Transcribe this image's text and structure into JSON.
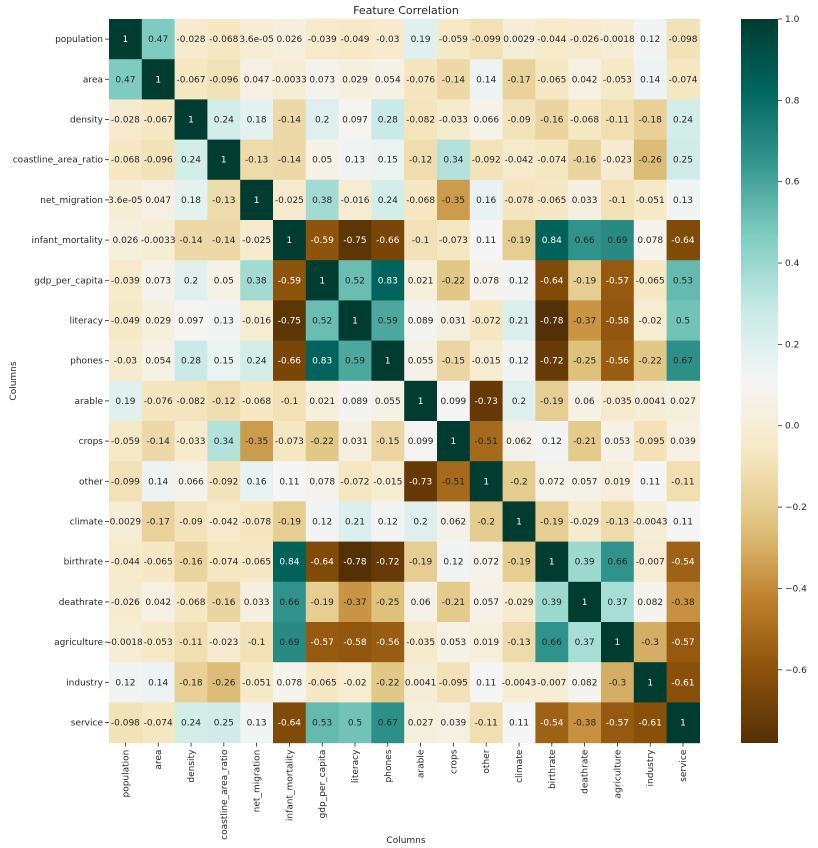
{
  "chart_data": {
    "type": "heatmap",
    "title": "Feature Correlation",
    "xlabel": "Columns",
    "ylabel": "Columns",
    "colormap": "BrBG",
    "vmin": -0.78,
    "vmax": 1.0,
    "colorbar_ticks": [
      1.0,
      0.8,
      0.6,
      0.4,
      0.2,
      0.0,
      -0.2,
      -0.4,
      -0.6
    ],
    "colorbar_tick_labels": [
      "1.0",
      "0.8",
      "0.6",
      "0.4",
      "0.2",
      "0.0",
      "−0.2",
      "−0.4",
      "−0.6"
    ],
    "columns": [
      "population",
      "area",
      "density",
      "coastline_area_ratio",
      "net_migration",
      "infant_mortality",
      "gdp_per_capita",
      "literacy",
      "phones",
      "arable",
      "crops",
      "other",
      "climate",
      "birthrate",
      "deathrate",
      "agriculture",
      "industry",
      "service"
    ],
    "rows": [
      "population",
      "area",
      "density",
      "coastline_area_ratio",
      "net_migration",
      "infant_mortality",
      "gdp_per_capita",
      "literacy",
      "phones",
      "arable",
      "crops",
      "other",
      "climate",
      "birthrate",
      "deathrate",
      "agriculture",
      "industry",
      "service"
    ],
    "values": [
      [
        1,
        0.47,
        -0.028,
        -0.068,
        3.6e-05,
        0.026,
        -0.039,
        -0.049,
        -0.03,
        0.19,
        -0.059,
        -0.099,
        0.0029,
        -0.044,
        -0.026,
        -0.0018,
        0.12,
        -0.098
      ],
      [
        0.47,
        1,
        -0.067,
        -0.096,
        0.047,
        -0.0033,
        0.073,
        0.029,
        0.054,
        -0.076,
        -0.14,
        0.14,
        -0.17,
        -0.065,
        0.042,
        -0.053,
        0.14,
        -0.074
      ],
      [
        -0.028,
        -0.067,
        1,
        0.24,
        0.18,
        -0.14,
        0.2,
        0.097,
        0.28,
        -0.082,
        -0.033,
        0.066,
        -0.09,
        -0.16,
        -0.068,
        -0.11,
        -0.18,
        0.24
      ],
      [
        -0.068,
        -0.096,
        0.24,
        1,
        -0.13,
        -0.14,
        0.05,
        0.13,
        0.15,
        -0.12,
        0.34,
        -0.092,
        -0.042,
        -0.074,
        -0.16,
        -0.023,
        -0.26,
        0.25
      ],
      [
        3.6e-05,
        0.047,
        0.18,
        -0.13,
        1,
        -0.025,
        0.38,
        -0.016,
        0.24,
        -0.068,
        -0.35,
        0.16,
        -0.078,
        -0.065,
        0.033,
        -0.1,
        -0.051,
        0.13
      ],
      [
        0.026,
        -0.0033,
        -0.14,
        -0.14,
        -0.025,
        1,
        -0.59,
        -0.75,
        -0.66,
        -0.1,
        -0.073,
        0.11,
        -0.19,
        0.84,
        0.66,
        0.69,
        0.078,
        -0.64
      ],
      [
        -0.039,
        0.073,
        0.2,
        0.05,
        0.38,
        -0.59,
        1,
        0.52,
        0.83,
        0.021,
        -0.22,
        0.078,
        0.12,
        -0.64,
        -0.19,
        -0.57,
        -0.065,
        0.53
      ],
      [
        -0.049,
        0.029,
        0.097,
        0.13,
        -0.016,
        -0.75,
        0.52,
        1,
        0.59,
        0.089,
        0.031,
        -0.072,
        0.21,
        -0.78,
        -0.37,
        -0.58,
        -0.02,
        0.5
      ],
      [
        -0.03,
        0.054,
        0.28,
        0.15,
        0.24,
        -0.66,
        0.83,
        0.59,
        1,
        0.055,
        -0.15,
        -0.015,
        0.12,
        -0.72,
        -0.25,
        -0.56,
        -0.22,
        0.67
      ],
      [
        0.19,
        -0.076,
        -0.082,
        -0.12,
        -0.068,
        -0.1,
        0.021,
        0.089,
        0.055,
        1,
        0.099,
        -0.73,
        0.2,
        -0.19,
        0.06,
        -0.035,
        0.0041,
        0.027
      ],
      [
        -0.059,
        -0.14,
        -0.033,
        0.34,
        -0.35,
        -0.073,
        -0.22,
        0.031,
        -0.15,
        0.099,
        1,
        -0.51,
        0.062,
        0.12,
        -0.21,
        0.053,
        -0.095,
        0.039
      ],
      [
        -0.099,
        0.14,
        0.066,
        -0.092,
        0.16,
        0.11,
        0.078,
        -0.072,
        -0.015,
        -0.73,
        -0.51,
        1,
        -0.2,
        0.072,
        0.057,
        0.019,
        0.11,
        -0.11
      ],
      [
        0.0029,
        -0.17,
        -0.09,
        -0.042,
        -0.078,
        -0.19,
        0.12,
        0.21,
        0.12,
        0.2,
        0.062,
        -0.2,
        1,
        -0.19,
        -0.029,
        -0.13,
        -0.0043,
        0.11
      ],
      [
        -0.044,
        -0.065,
        -0.16,
        -0.074,
        -0.065,
        0.84,
        -0.64,
        -0.78,
        -0.72,
        -0.19,
        0.12,
        0.072,
        -0.19,
        1,
        0.39,
        0.66,
        -0.007,
        -0.54
      ],
      [
        -0.026,
        0.042,
        -0.068,
        -0.16,
        0.033,
        0.66,
        -0.19,
        -0.37,
        -0.25,
        0.06,
        -0.21,
        0.057,
        -0.029,
        0.39,
        1,
        0.37,
        0.082,
        -0.38
      ],
      [
        -0.0018,
        -0.053,
        -0.11,
        -0.023,
        -0.1,
        0.69,
        -0.57,
        -0.58,
        -0.56,
        -0.035,
        0.053,
        0.019,
        -0.13,
        0.66,
        0.37,
        1,
        -0.3,
        -0.57
      ],
      [
        0.12,
        0.14,
        -0.18,
        -0.26,
        -0.051,
        0.078,
        -0.065,
        -0.02,
        -0.22,
        0.0041,
        -0.095,
        0.11,
        -0.0043,
        -0.007,
        0.082,
        -0.3,
        1,
        -0.61
      ],
      [
        -0.098,
        -0.074,
        0.24,
        0.25,
        0.13,
        -0.64,
        0.53,
        0.5,
        0.67,
        0.027,
        0.039,
        -0.11,
        0.11,
        -0.54,
        -0.38,
        -0.57,
        -0.61,
        1
      ]
    ],
    "labels": [
      [
        "1",
        "0.47",
        "-0.028",
        "-0.068",
        "3.6e-05",
        "0.026",
        "-0.039",
        "-0.049",
        "-0.03",
        "0.19",
        "-0.059",
        "-0.099",
        "0.0029",
        "-0.044",
        "-0.026",
        "-0.0018",
        "0.12",
        "-0.098"
      ],
      [
        "0.47",
        "1",
        "-0.067",
        "-0.096",
        "0.047",
        "-0.0033",
        "0.073",
        "0.029",
        "0.054",
        "-0.076",
        "-0.14",
        "0.14",
        "-0.17",
        "-0.065",
        "0.042",
        "-0.053",
        "0.14",
        "-0.074"
      ],
      [
        "-0.028",
        "-0.067",
        "1",
        "0.24",
        "0.18",
        "-0.14",
        "0.2",
        "0.097",
        "0.28",
        "-0.082",
        "-0.033",
        "0.066",
        "-0.09",
        "-0.16",
        "-0.068",
        "-0.11",
        "-0.18",
        "0.24"
      ],
      [
        "-0.068",
        "-0.096",
        "0.24",
        "1",
        "-0.13",
        "-0.14",
        "0.05",
        "0.13",
        "0.15",
        "-0.12",
        "0.34",
        "-0.092",
        "-0.042",
        "-0.074",
        "-0.16",
        "-0.023",
        "-0.26",
        "0.25"
      ],
      [
        "3.6e-05",
        "0.047",
        "0.18",
        "-0.13",
        "1",
        "-0.025",
        "0.38",
        "-0.016",
        "0.24",
        "-0.068",
        "-0.35",
        "0.16",
        "-0.078",
        "-0.065",
        "0.033",
        "-0.1",
        "-0.051",
        "0.13"
      ],
      [
        "0.026",
        "-0.0033",
        "-0.14",
        "-0.14",
        "-0.025",
        "1",
        "-0.59",
        "-0.75",
        "-0.66",
        "-0.1",
        "-0.073",
        "0.11",
        "-0.19",
        "0.84",
        "0.66",
        "0.69",
        "0.078",
        "-0.64"
      ],
      [
        "-0.039",
        "0.073",
        "0.2",
        "0.05",
        "0.38",
        "-0.59",
        "1",
        "0.52",
        "0.83",
        "0.021",
        "-0.22",
        "0.078",
        "0.12",
        "-0.64",
        "-0.19",
        "-0.57",
        "-0.065",
        "0.53"
      ],
      [
        "-0.049",
        "0.029",
        "0.097",
        "0.13",
        "-0.016",
        "-0.75",
        "0.52",
        "1",
        "0.59",
        "0.089",
        "0.031",
        "-0.072",
        "0.21",
        "-0.78",
        "-0.37",
        "-0.58",
        "-0.02",
        "0.5"
      ],
      [
        "-0.03",
        "0.054",
        "0.28",
        "0.15",
        "0.24",
        "-0.66",
        "0.83",
        "0.59",
        "1",
        "0.055",
        "-0.15",
        "-0.015",
        "0.12",
        "-0.72",
        "-0.25",
        "-0.56",
        "-0.22",
        "0.67"
      ],
      [
        "0.19",
        "-0.076",
        "-0.082",
        "-0.12",
        "-0.068",
        "-0.1",
        "0.021",
        "0.089",
        "0.055",
        "1",
        "0.099",
        "-0.73",
        "0.2",
        "-0.19",
        "0.06",
        "-0.035",
        "0.0041",
        "0.027"
      ],
      [
        "-0.059",
        "-0.14",
        "-0.033",
        "0.34",
        "-0.35",
        "-0.073",
        "-0.22",
        "0.031",
        "-0.15",
        "0.099",
        "1",
        "-0.51",
        "0.062",
        "0.12",
        "-0.21",
        "0.053",
        "-0.095",
        "0.039"
      ],
      [
        "-0.099",
        "0.14",
        "0.066",
        "-0.092",
        "0.16",
        "0.11",
        "0.078",
        "-0.072",
        "-0.015",
        "-0.73",
        "-0.51",
        "1",
        "-0.2",
        "0.072",
        "0.057",
        "0.019",
        "0.11",
        "-0.11"
      ],
      [
        "0.0029",
        "-0.17",
        "-0.09",
        "-0.042",
        "-0.078",
        "-0.19",
        "0.12",
        "0.21",
        "0.12",
        "0.2",
        "0.062",
        "-0.2",
        "1",
        "-0.19",
        "-0.029",
        "-0.13",
        "-0.0043",
        "0.11"
      ],
      [
        "-0.044",
        "-0.065",
        "-0.16",
        "-0.074",
        "-0.065",
        "0.84",
        "-0.64",
        "-0.78",
        "-0.72",
        "-0.19",
        "0.12",
        "0.072",
        "-0.19",
        "1",
        "0.39",
        "0.66",
        "-0.007",
        "-0.54"
      ],
      [
        "-0.026",
        "0.042",
        "-0.068",
        "-0.16",
        "0.033",
        "0.66",
        "-0.19",
        "-0.37",
        "-0.25",
        "0.06",
        "-0.21",
        "0.057",
        "-0.029",
        "0.39",
        "1",
        "0.37",
        "0.082",
        "-0.38"
      ],
      [
        "-0.0018",
        "-0.053",
        "-0.11",
        "-0.023",
        "-0.1",
        "0.69",
        "-0.57",
        "-0.58",
        "-0.56",
        "-0.035",
        "0.053",
        "0.019",
        "-0.13",
        "0.66",
        "0.37",
        "1",
        "-0.3",
        "-0.57"
      ],
      [
        "0.12",
        "0.14",
        "-0.18",
        "-0.26",
        "-0.051",
        "0.078",
        "-0.065",
        "-0.02",
        "-0.22",
        "0.0041",
        "-0.095",
        "0.11",
        "-0.0043",
        "-0.007",
        "0.082",
        "-0.3",
        "1",
        "-0.61"
      ],
      [
        "-0.098",
        "-0.074",
        "0.24",
        "0.25",
        "0.13",
        "-0.64",
        "0.53",
        "0.5",
        "0.67",
        "0.027",
        "0.039",
        "-0.11",
        "0.11",
        "-0.54",
        "-0.38",
        "-0.57",
        "-0.61",
        "1"
      ]
    ]
  }
}
